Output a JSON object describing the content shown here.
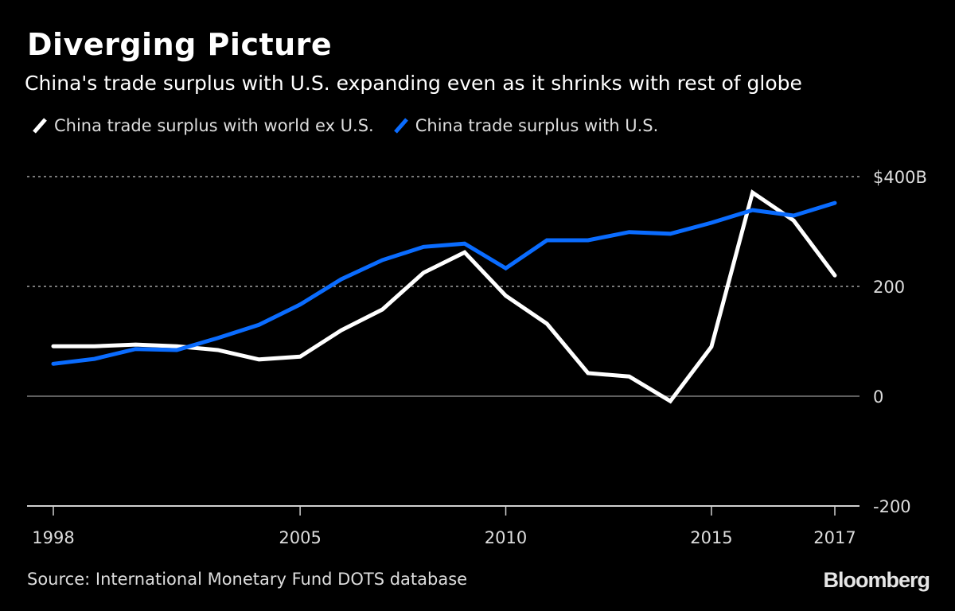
{
  "header": {
    "title": "Diverging Picture",
    "subtitle": "China's trade surplus with U.S. expanding even as it shrinks with rest of globe"
  },
  "footer": {
    "source": "Source: International Monetary Fund DOTS database",
    "brand": "Bloomberg"
  },
  "chart_data": {
    "type": "line",
    "title": "Diverging Picture",
    "subtitle": "China's trade surplus with U.S. expanding even as it shrinks with rest of globe",
    "xlabel": "",
    "ylabel": "",
    "x_index": [
      0,
      1,
      2,
      3,
      4,
      5,
      6,
      7,
      8,
      9,
      10,
      11,
      12,
      13,
      14,
      15,
      16,
      17,
      18,
      19
    ],
    "xticks": [
      {
        "label": "1998",
        "index": 0
      },
      {
        "label": "2005",
        "index": 6
      },
      {
        "label": "2010",
        "index": 11
      },
      {
        "label": "2015",
        "index": 16
      },
      {
        "label": "2017",
        "index": 19
      }
    ],
    "yticks": [
      {
        "value": 400,
        "label": "$400B",
        "style": "dotted"
      },
      {
        "value": 200,
        "label": "200",
        "style": "dotted"
      },
      {
        "value": 0,
        "label": "0",
        "style": "solid"
      },
      {
        "value": -200,
        "label": "-200",
        "style": "axis"
      }
    ],
    "ylim": [
      -200,
      400
    ],
    "grid": true,
    "legend_position": "top-left",
    "series": [
      {
        "name": "China trade surplus with world ex U.S.",
        "color": "#ffffff",
        "values": [
          91,
          91,
          94,
          91,
          84,
          67,
          72,
          120,
          158,
          225,
          262,
          183,
          132,
          42,
          36,
          -9,
          90,
          371,
          320,
          220
        ]
      },
      {
        "name": "China trade surplus with U.S.",
        "color": "#0a6cff",
        "values": [
          59,
          68,
          86,
          84,
          106,
          130,
          167,
          213,
          248,
          272,
          278,
          233,
          284,
          284,
          299,
          296,
          316,
          339,
          329,
          352
        ]
      }
    ]
  }
}
